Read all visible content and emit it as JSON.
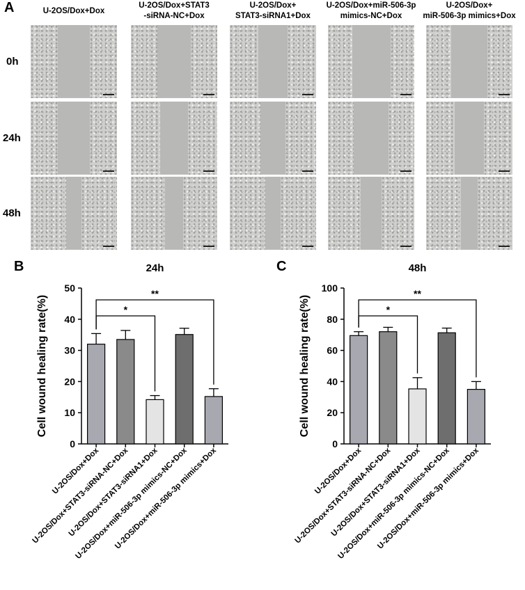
{
  "panel_a": {
    "letter": "A",
    "columns": [
      {
        "line1": "U-2OS/Dox+Dox",
        "line2": ""
      },
      {
        "line1": "U-2OS/Dox+STAT3",
        "line2": "-siRNA-NC+Dox"
      },
      {
        "line1": "U-2OS/Dox+",
        "line2": "STAT3-siRNA1+Dox"
      },
      {
        "line1": "U-2OS/Dox+miR-506-3p",
        "line2": "mimics-NC+Dox"
      },
      {
        "line1": "U-2OS/Dox+",
        "line2": "miR-506-3p mimics+Dox"
      }
    ],
    "rows": [
      "0h",
      "24h",
      "48h"
    ]
  },
  "chart_data": [
    {
      "panel": "B",
      "type": "bar",
      "title": "24h",
      "xlabel": "",
      "ylabel": "Cell wound healing rate(%)",
      "ylim": [
        0,
        50
      ],
      "yticks": [
        0,
        10,
        20,
        30,
        40,
        50
      ],
      "categories": [
        "U-2OS/Dox+Dox",
        "U-2OS/Dox+STAT3-siRNA-NC+Dox",
        "U-2OS/Dox+STAT3-siRNA1+Dox",
        "U-2OS/Dox+miR-506-3p mimics-NC+Dox",
        "U-2OS/Dox+miR-506-3p mimics+Dox"
      ],
      "values": [
        32.0,
        33.5,
        14.2,
        35.1,
        15.2
      ],
      "errors": [
        3.4,
        2.9,
        1.3,
        2.0,
        2.5
      ],
      "colors": [
        "#a8a8b0",
        "#8a8a8a",
        "#e4e4e4",
        "#6e6e6e",
        "#a8a8b0"
      ],
      "significance": [
        {
          "from": 0,
          "to": 2,
          "label": "*"
        },
        {
          "from": 0,
          "to": 4,
          "label": "**"
        }
      ]
    },
    {
      "panel": "C",
      "type": "bar",
      "title": "48h",
      "xlabel": "",
      "ylabel": "Cell wound healing rate(%)",
      "ylim": [
        0,
        100
      ],
      "yticks": [
        0,
        20,
        40,
        60,
        80,
        100
      ],
      "categories": [
        "U-2OS/Dox+Dox",
        "U-2OS/Dox+STAT3-siRNA-NC+Dox",
        "U-2OS/Dox+STAT3-siRNA1+Dox",
        "U-2OS/Dox+miR-506-3p mimics-NC+Dox",
        "U-2OS/Dox+miR-506-3p mimics+Dox"
      ],
      "values": [
        69.5,
        72.0,
        35.3,
        71.3,
        35.0
      ],
      "errors": [
        2.5,
        2.8,
        7.2,
        3.0,
        5.0
      ],
      "colors": [
        "#a8a8b0",
        "#8a8a8a",
        "#e4e4e4",
        "#6e6e6e",
        "#a8a8b0"
      ],
      "significance": [
        {
          "from": 0,
          "to": 2,
          "label": "*"
        },
        {
          "from": 0,
          "to": 4,
          "label": "**"
        }
      ]
    }
  ]
}
